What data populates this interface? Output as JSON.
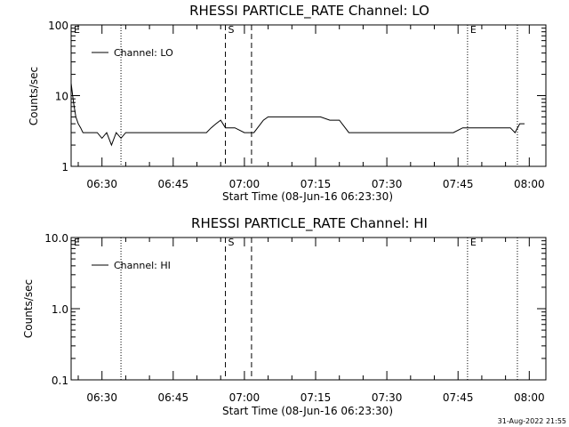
{
  "chart_data": [
    {
      "type": "line",
      "title": "RHESSI PARTICLE_RATE Channel: LO",
      "xlabel": "Start Time (08-Jun-16 06:23:30)",
      "ylabel": "Counts/sec",
      "y_scale": "log",
      "ylim": [
        1,
        100
      ],
      "y_tick_labels": [
        "1",
        "10",
        "100"
      ],
      "xlim": [
        "06:23:30",
        "08:03:30"
      ],
      "x_tick_labels": [
        "06:30",
        "06:45",
        "07:00",
        "07:15",
        "07:30",
        "07:45",
        "08:00"
      ],
      "grid": false,
      "legend": {
        "position": "top-left",
        "label": "Channel: LO"
      },
      "series": [
        {
          "name": "Channel: LO",
          "x": [
            "06:23:30",
            "06:24:00",
            "06:24:30",
            "06:25:00",
            "06:25:30",
            "06:26:00",
            "06:27:00",
            "06:28:00",
            "06:29:00",
            "06:30:00",
            "06:31:00",
            "06:32:00",
            "06:33:00",
            "06:34:00",
            "06:35:00",
            "06:36:00",
            "06:38:00",
            "06:40:00",
            "06:42:00",
            "06:44:00",
            "06:46:00",
            "06:48:00",
            "06:50:00",
            "06:52:00",
            "06:53:00",
            "06:54:00",
            "06:55:00",
            "06:56:00",
            "06:58:00",
            "07:00:00",
            "07:02:00",
            "07:04:00",
            "07:05:00",
            "07:06:00",
            "07:08:00",
            "07:10:00",
            "07:12:00",
            "07:14:00",
            "07:16:00",
            "07:18:00",
            "07:20:00",
            "07:22:00",
            "07:24:00",
            "07:26:00",
            "07:28:00",
            "07:30:00",
            "07:32:00",
            "07:34:00",
            "07:36:00",
            "07:38:00",
            "07:40:00",
            "07:42:00",
            "07:44:00",
            "07:46:00",
            "07:48:00",
            "07:50:00",
            "07:52:00",
            "07:54:00",
            "07:56:00",
            "07:57:00",
            "07:58:00",
            "07:59:00"
          ],
          "y": [
            15,
            8,
            5,
            4,
            3.5,
            3,
            3,
            3,
            3,
            2.5,
            3,
            2,
            3,
            2.5,
            3,
            3,
            3,
            3,
            3,
            3,
            3,
            3,
            3,
            3,
            3.5,
            4,
            4.5,
            3.5,
            3.5,
            3,
            3,
            4.5,
            5,
            5,
            5,
            5,
            5,
            5,
            5,
            4.5,
            4.5,
            3,
            3,
            3,
            3,
            3,
            3,
            3,
            3,
            3,
            3,
            3,
            3,
            3.5,
            3.5,
            3.5,
            3.5,
            3.5,
            3.5,
            3,
            4,
            4
          ]
        }
      ],
      "annotations": [
        {
          "label": "E",
          "time": "06:23:30"
        },
        {
          "label": "S",
          "time": "06:56:00"
        },
        {
          "label": "E",
          "time": "07:47:00"
        }
      ]
    },
    {
      "type": "line",
      "title": "RHESSI PARTICLE_RATE Channel: HI",
      "xlabel": "Start Time (08-Jun-16 06:23:30)",
      "ylabel": "Counts/sec",
      "y_scale": "log",
      "ylim": [
        0.1,
        10
      ],
      "y_tick_labels": [
        "0.1",
        "1.0",
        "10.0"
      ],
      "xlim": [
        "06:23:30",
        "08:03:30"
      ],
      "x_tick_labels": [
        "06:30",
        "06:45",
        "07:00",
        "07:15",
        "07:30",
        "07:45",
        "08:00"
      ],
      "grid": false,
      "legend": {
        "position": "top-left",
        "label": "Channel: HI"
      },
      "series": [
        {
          "name": "Channel: HI",
          "x": [],
          "y": []
        }
      ],
      "annotations": [
        {
          "label": "E",
          "time": "06:23:30"
        },
        {
          "label": "S",
          "time": "06:56:00"
        },
        {
          "label": "E",
          "time": "07:47:00"
        }
      ]
    }
  ],
  "markers": {
    "dotted_times": [
      "06:34:00",
      "07:47:00",
      "07:57:30"
    ],
    "dashed_times": [
      "06:56:00",
      "07:01:30"
    ]
  },
  "footer": {
    "timestamp": "31-Aug-2022 21:55"
  }
}
